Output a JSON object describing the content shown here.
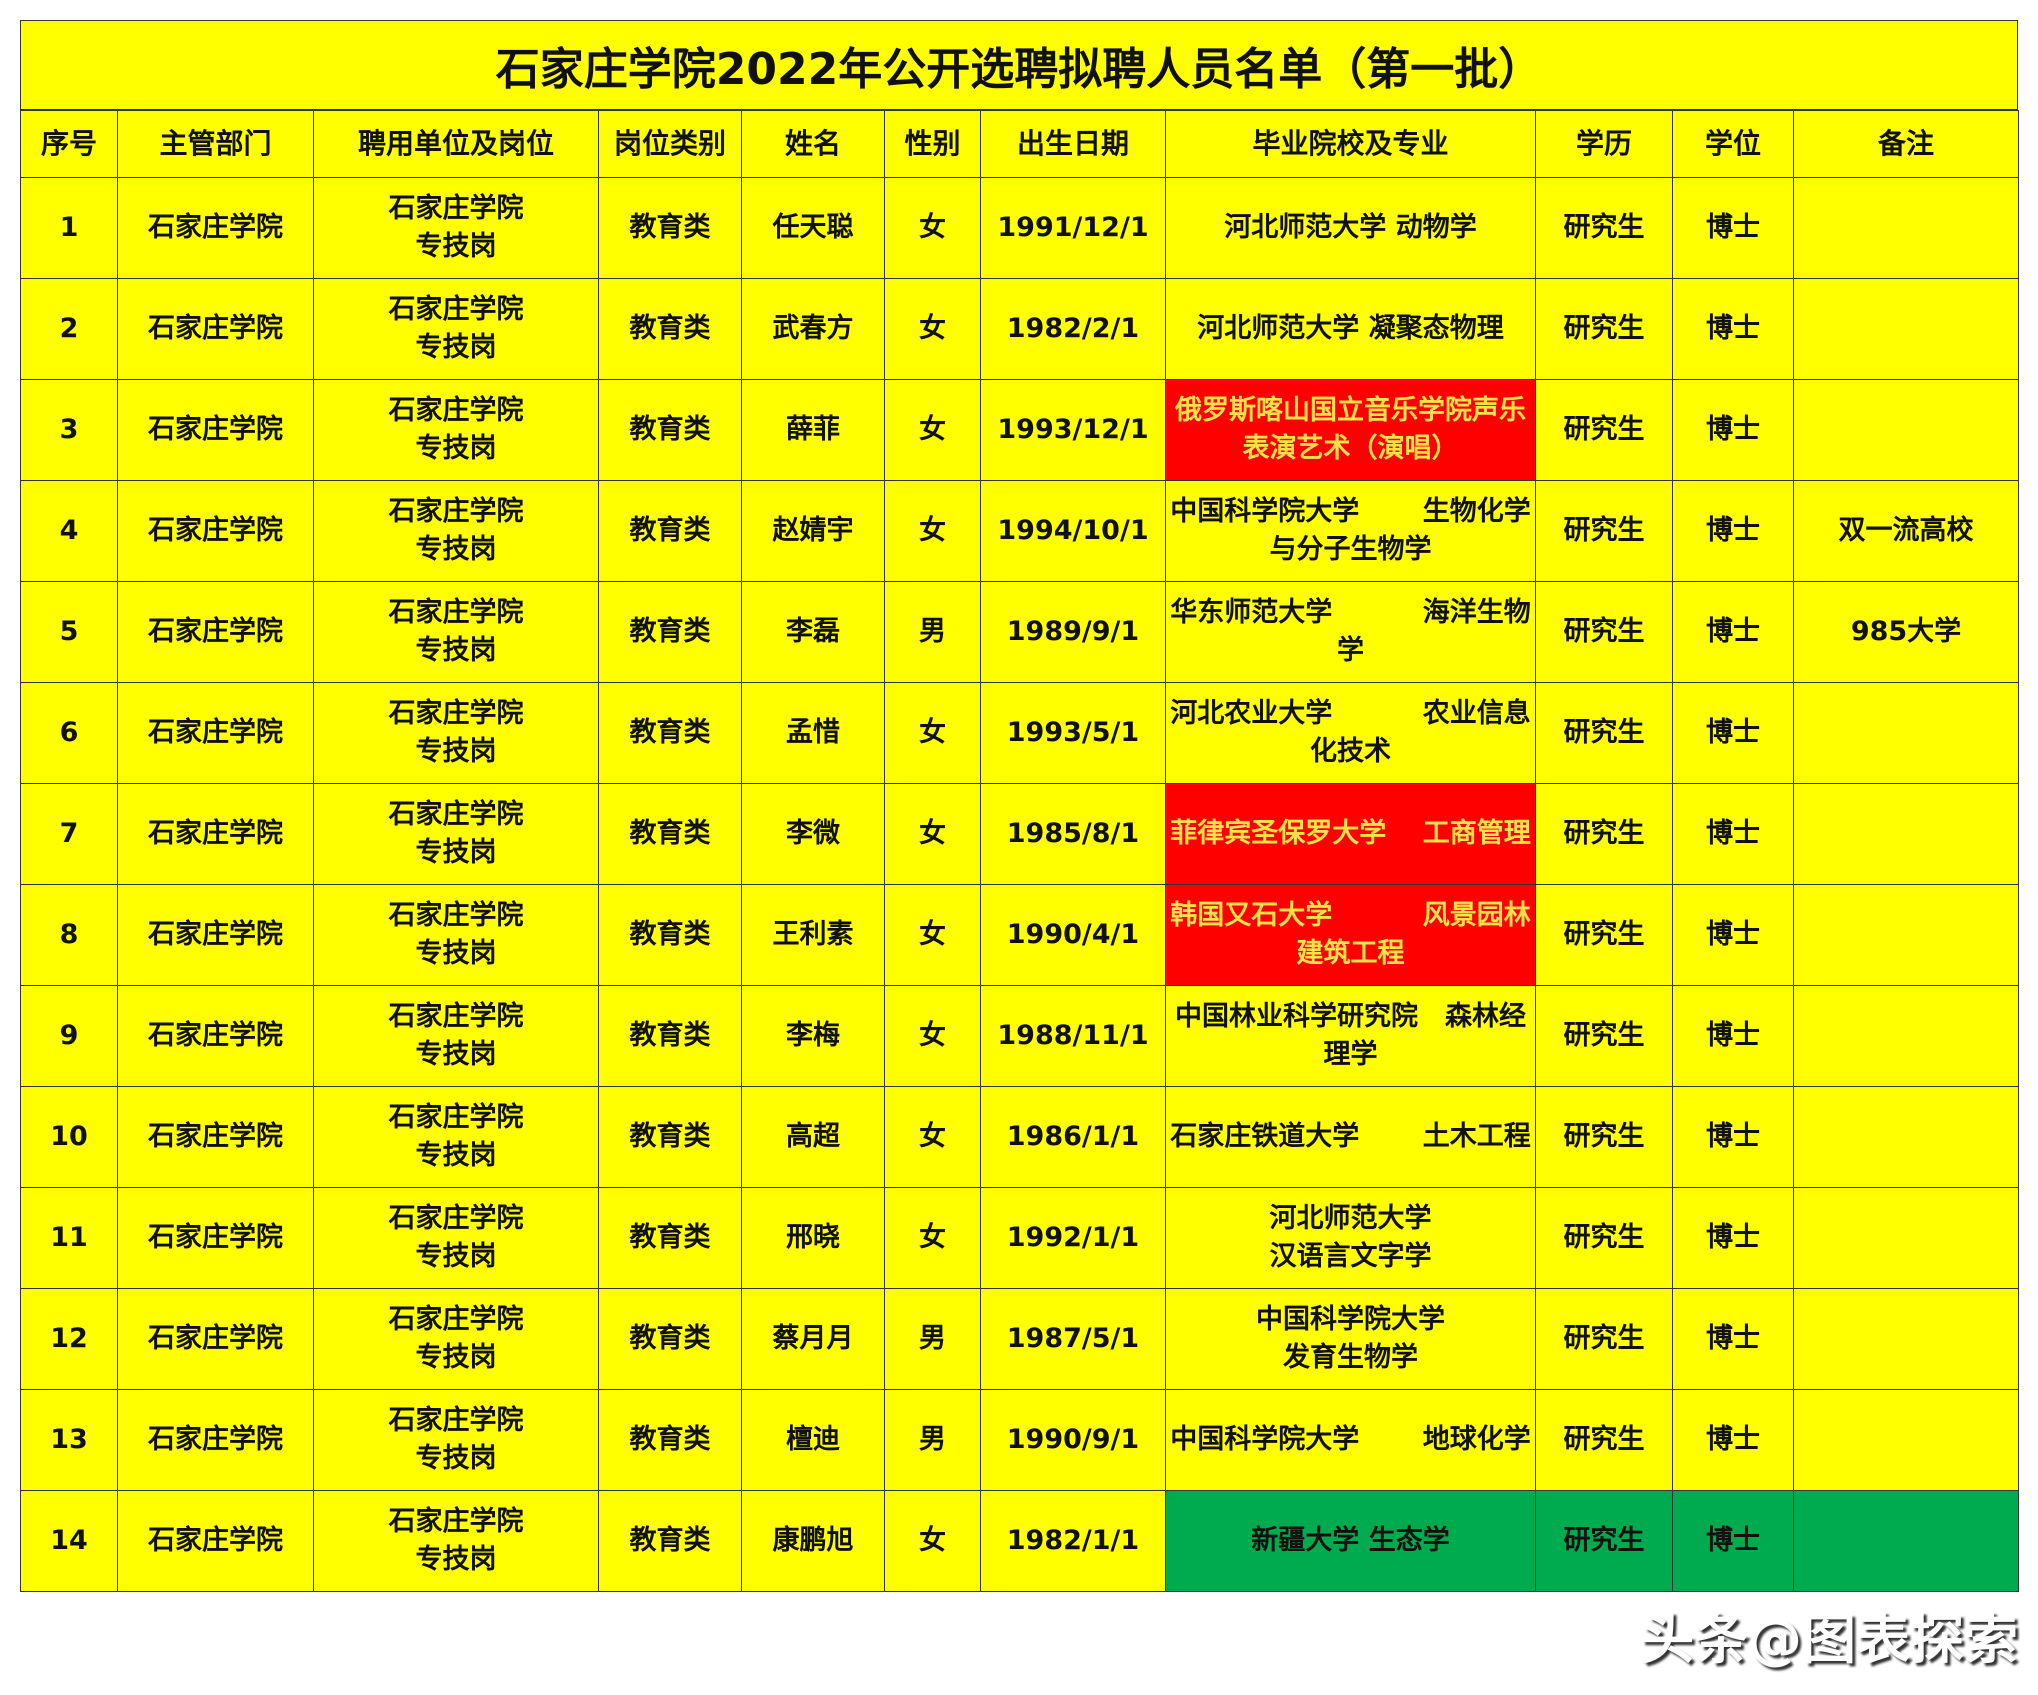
{
  "title": "石家庄学院2022年公开选聘拟聘人员名单（第一批）",
  "headers": [
    "序号",
    "主管部门",
    "聘用单位及岗位",
    "岗位类别",
    "姓名",
    "性别",
    "出生日期",
    "毕业院校及专业",
    "学历",
    "学位",
    "备注"
  ],
  "colors": {
    "cell": "#ffff00",
    "highlight_red": "#ff0000",
    "highlight_green": "#00aa4f"
  },
  "rows": [
    {
      "no": "1",
      "dept": "石家庄学院",
      "unit": "石家庄学院\n专技岗",
      "cat": "教育类",
      "name": "任天聪",
      "sex": "女",
      "birth": "1991/12/1",
      "school": "河北师范大学 动物学",
      "edu": "研究生",
      "degree": "博士",
      "note": "",
      "highlight": ""
    },
    {
      "no": "2",
      "dept": "石家庄学院",
      "unit": "石家庄学院\n专技岗",
      "cat": "教育类",
      "name": "武春方",
      "sex": "女",
      "birth": "1982/2/1",
      "school": "河北师范大学 凝聚态物理",
      "edu": "研究生",
      "degree": "博士",
      "note": "",
      "highlight": ""
    },
    {
      "no": "3",
      "dept": "石家庄学院",
      "unit": "石家庄学院\n专技岗",
      "cat": "教育类",
      "name": "薛菲",
      "sex": "女",
      "birth": "1993/12/1",
      "school": "俄罗斯喀山国立音乐学院声乐表演艺术（演唱）",
      "edu": "研究生",
      "degree": "博士",
      "note": "",
      "highlight": "red"
    },
    {
      "no": "4",
      "dept": "石家庄学院",
      "unit": "石家庄学院\n专技岗",
      "cat": "教育类",
      "name": "赵婧宇",
      "sex": "女",
      "birth": "1994/10/1",
      "school": "中国科学院大学　　 生物化学与分子生物学",
      "edu": "研究生",
      "degree": "博士",
      "note": "双一流高校",
      "highlight": ""
    },
    {
      "no": "5",
      "dept": "石家庄学院",
      "unit": "石家庄学院\n专技岗",
      "cat": "教育类",
      "name": "李磊",
      "sex": "男",
      "birth": "1989/9/1",
      "school": "华东师范大学　　　 海洋生物学",
      "edu": "研究生",
      "degree": "博士",
      "note": "985大学",
      "highlight": ""
    },
    {
      "no": "6",
      "dept": "石家庄学院",
      "unit": "石家庄学院\n专技岗",
      "cat": "教育类",
      "name": "孟惜",
      "sex": "女",
      "birth": "1993/5/1",
      "school": "河北农业大学　　　 农业信息化技术",
      "edu": "研究生",
      "degree": "博士",
      "note": "",
      "highlight": ""
    },
    {
      "no": "7",
      "dept": "石家庄学院",
      "unit": "石家庄学院\n专技岗",
      "cat": "教育类",
      "name": "李微",
      "sex": "女",
      "birth": "1985/8/1",
      "school": "菲律宾圣保罗大学　 工商管理",
      "edu": "研究生",
      "degree": "博士",
      "note": "",
      "highlight": "red"
    },
    {
      "no": "8",
      "dept": "石家庄学院",
      "unit": "石家庄学院\n专技岗",
      "cat": "教育类",
      "name": "王利素",
      "sex": "女",
      "birth": "1990/4/1",
      "school": "韩国又石大学　　　 风景园林建筑工程",
      "edu": "研究生",
      "degree": "博士",
      "note": "",
      "highlight": "red"
    },
    {
      "no": "9",
      "dept": "石家庄学院",
      "unit": "石家庄学院\n专技岗",
      "cat": "教育类",
      "name": "李梅",
      "sex": "女",
      "birth": "1988/11/1",
      "school": "中国林业科学研究院　森林经理学",
      "edu": "研究生",
      "degree": "博士",
      "note": "",
      "highlight": ""
    },
    {
      "no": "10",
      "dept": "石家庄学院",
      "unit": "石家庄学院\n专技岗",
      "cat": "教育类",
      "name": "高超",
      "sex": "女",
      "birth": "1986/1/1",
      "school": "石家庄铁道大学　　 土木工程",
      "edu": "研究生",
      "degree": "博士",
      "note": "",
      "highlight": ""
    },
    {
      "no": "11",
      "dept": "石家庄学院",
      "unit": "石家庄学院\n专技岗",
      "cat": "教育类",
      "name": "邢晓",
      "sex": "女",
      "birth": "1992/1/1",
      "school": "河北师范大学\n汉语言文字学",
      "edu": "研究生",
      "degree": "博士",
      "note": "",
      "highlight": ""
    },
    {
      "no": "12",
      "dept": "石家庄学院",
      "unit": "石家庄学院\n专技岗",
      "cat": "教育类",
      "name": "蔡月月",
      "sex": "男",
      "birth": "1987/5/1",
      "school": "中国科学院大学\n发育生物学",
      "edu": "研究生",
      "degree": "博士",
      "note": "",
      "highlight": ""
    },
    {
      "no": "13",
      "dept": "石家庄学院",
      "unit": "石家庄学院\n专技岗",
      "cat": "教育类",
      "name": "檀迪",
      "sex": "男",
      "birth": "1990/9/1",
      "school": "中国科学院大学　　 地球化学",
      "edu": "研究生",
      "degree": "博士",
      "note": "",
      "highlight": ""
    },
    {
      "no": "14",
      "dept": "石家庄学院",
      "unit": "石家庄学院\n专技岗",
      "cat": "教育类",
      "name": "康鹏旭",
      "sex": "女",
      "birth": "1982/1/1",
      "school": "新疆大学 生态学",
      "edu": "研究生",
      "degree": "博士",
      "note": "",
      "highlight": "green"
    }
  ],
  "watermark": "头条@图表探索"
}
